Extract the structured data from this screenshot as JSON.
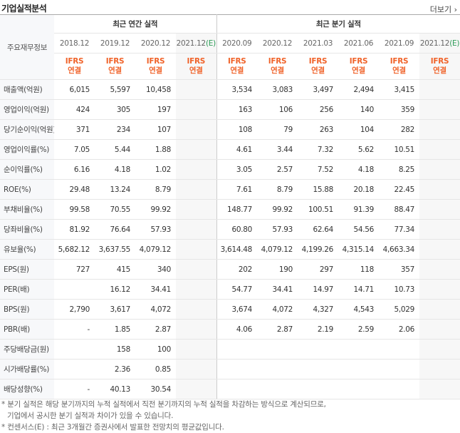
{
  "header": {
    "title": "기업실적분석",
    "more": "더보기"
  },
  "table": {
    "row_header_label": "주요재무정보",
    "groups": [
      {
        "label": "최근 연간 실적",
        "span": 4
      },
      {
        "label": "최근 분기 실적",
        "span": 6
      }
    ],
    "periods": [
      {
        "date": "2018.12"
      },
      {
        "date": "2019.12"
      },
      {
        "date": "2020.12"
      },
      {
        "date": "2021.12",
        "estimate": "(E)"
      },
      {
        "date": "2020.09"
      },
      {
        "date": "2020.12"
      },
      {
        "date": "2021.03"
      },
      {
        "date": "2021.06"
      },
      {
        "date": "2021.09"
      },
      {
        "date": "2021.12",
        "estimate": "(E)"
      }
    ],
    "basis": [
      "IFRS",
      "연결"
    ],
    "rows": [
      {
        "label": "매출액(억원)",
        "values": [
          "6,015",
          "5,597",
          "10,458",
          null,
          "3,534",
          "3,083",
          "3,497",
          "2,494",
          "3,415",
          null
        ]
      },
      {
        "label": "영업이익(억원)",
        "values": [
          "424",
          "305",
          "197",
          null,
          "163",
          "106",
          "256",
          "140",
          "359",
          null
        ]
      },
      {
        "label": "당기순이익(억원)",
        "values": [
          "371",
          "234",
          "107",
          null,
          "108",
          "79",
          "263",
          "104",
          "282",
          null
        ]
      },
      {
        "label": "영업이익률(%)",
        "values": [
          "7.05",
          "5.44",
          "1.88",
          null,
          "4.61",
          "3.44",
          "7.32",
          "5.62",
          "10.51",
          null
        ]
      },
      {
        "label": "순이익률(%)",
        "values": [
          "6.16",
          "4.18",
          "1.02",
          null,
          "3.05",
          "2.57",
          "7.52",
          "4.18",
          "8.25",
          null
        ]
      },
      {
        "label": "ROE(%)",
        "values": [
          "29.48",
          "13.24",
          "8.79",
          null,
          "7.61",
          "8.79",
          "15.88",
          "20.18",
          "22.45",
          null
        ]
      },
      {
        "label": "부채비율(%)",
        "values": [
          "99.58",
          "70.55",
          "99.92",
          null,
          "148.77",
          "99.92",
          "100.51",
          "91.39",
          "88.47",
          null
        ]
      },
      {
        "label": "당좌비율(%)",
        "values": [
          "81.92",
          "76.64",
          "57.93",
          null,
          "60.80",
          "57.93",
          "62.64",
          "54.56",
          "77.34",
          null
        ]
      },
      {
        "label": "유보율(%)",
        "values": [
          "5,682.12",
          "3,637.55",
          "4,079.12",
          null,
          "3,614.48",
          "4,079.12",
          "4,199.26",
          "4,315.14",
          "4,663.34",
          null
        ]
      },
      {
        "label": "EPS(원)",
        "values": [
          "727",
          "415",
          "340",
          null,
          "202",
          "190",
          "297",
          "118",
          "357",
          null
        ]
      },
      {
        "label": "PER(배)",
        "values": [
          null,
          "16.12",
          "34.41",
          null,
          "54.77",
          "34.41",
          "14.97",
          "14.71",
          "10.73",
          null
        ]
      },
      {
        "label": "BPS(원)",
        "values": [
          "2,790",
          "3,617",
          "4,072",
          null,
          "3,674",
          "4,072",
          "4,327",
          "4,543",
          "5,029",
          null
        ]
      },
      {
        "label": "PBR(배)",
        "values": [
          "-",
          "1.85",
          "2.87",
          null,
          "4.06",
          "2.87",
          "2.19",
          "2.59",
          "2.06",
          null
        ]
      },
      {
        "label": "주당배당금(원)",
        "values": [
          null,
          "158",
          "100",
          null,
          null,
          null,
          null,
          null,
          null,
          null
        ]
      },
      {
        "label": "시가배당률(%)",
        "values": [
          null,
          "2.36",
          "0.85",
          null,
          null,
          null,
          null,
          null,
          null,
          null
        ]
      },
      {
        "label": "배당성향(%)",
        "values": [
          "-",
          "40.13",
          "30.54",
          null,
          null,
          null,
          null,
          null,
          null,
          null
        ]
      }
    ]
  },
  "notes": [
    "* 분기 실적은 해당 분기까지의 누적 실적에서 직전 분기까지의 누적 실적을 차감하는 방식으로 계산되므로,",
    "기업에서 공시한 분기 실적과 차이가 있을 수 있습니다.",
    "* 컨센서스(E) : 최근 3개월간 증권사에서 발표한 전망치의 평균값입니다."
  ]
}
